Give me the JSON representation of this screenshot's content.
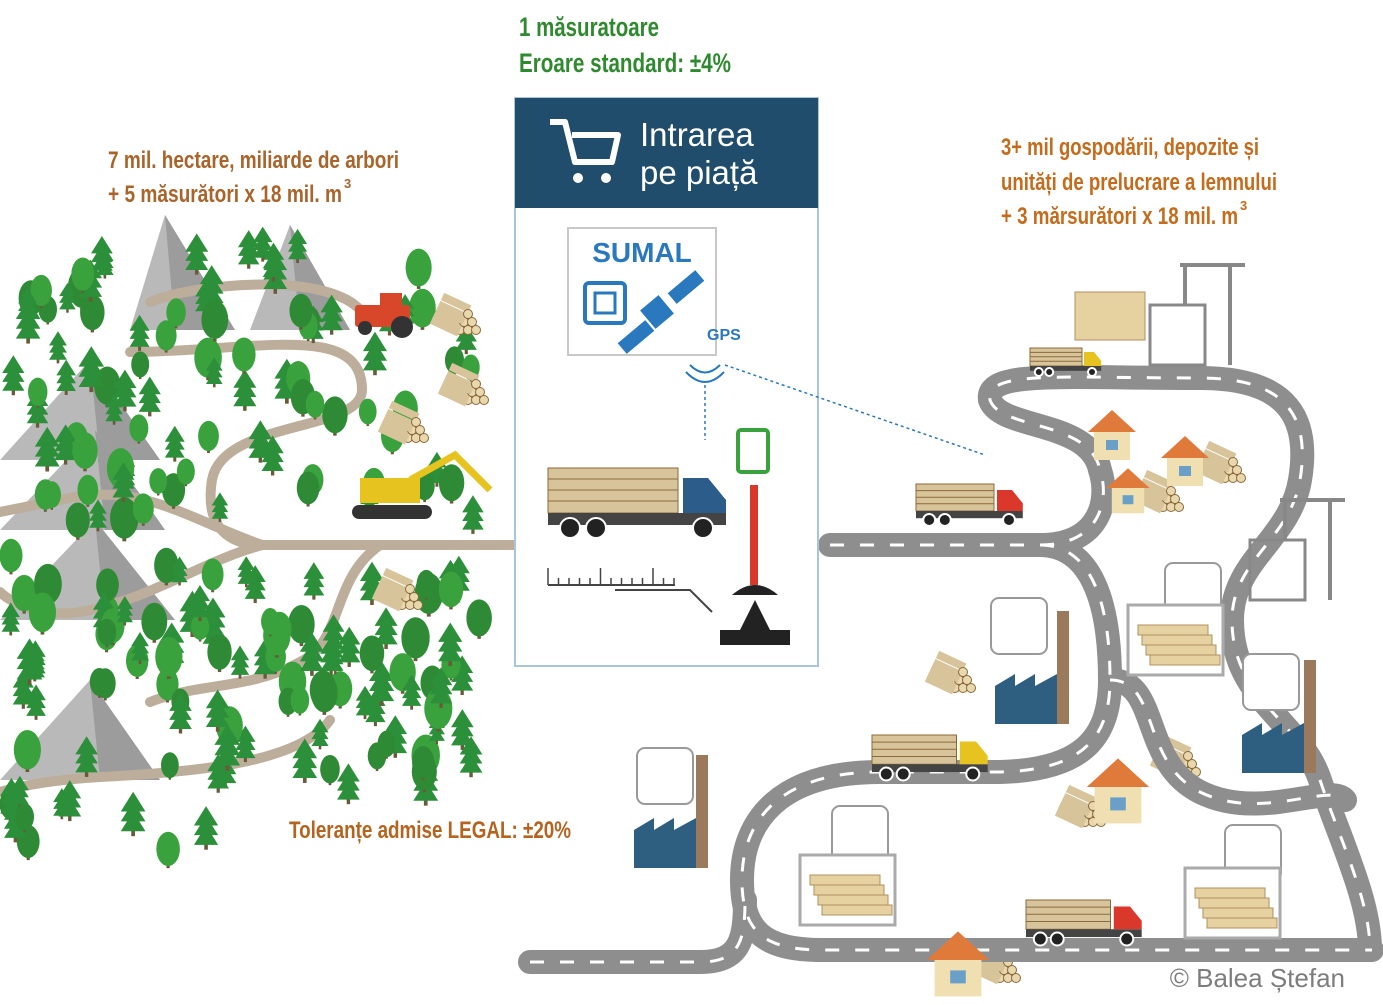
{
  "center": {
    "heading": [
      "1 măsuratoare",
      "Eroare standard: ±4%"
    ],
    "panel_title": [
      "Intrarea",
      "pe piață"
    ],
    "system": "SUMAL",
    "gps": "GPS"
  },
  "forest": {
    "lines": [
      "7 mil. hectare, miliarde de arbori",
      "+ 5  măsurători x 18 mil. m"
    ],
    "superscript": "3"
  },
  "market": {
    "lines": [
      "3+ mil gospodării, depozite și",
      "unități de prelucrare a lemnului",
      "+ 3 mărsurători x 18 mil. m"
    ],
    "superscript": "3"
  },
  "tolerance": "Toleranțe admise LEGAL:  ±20%",
  "credit": "© Balea Ștefan"
}
